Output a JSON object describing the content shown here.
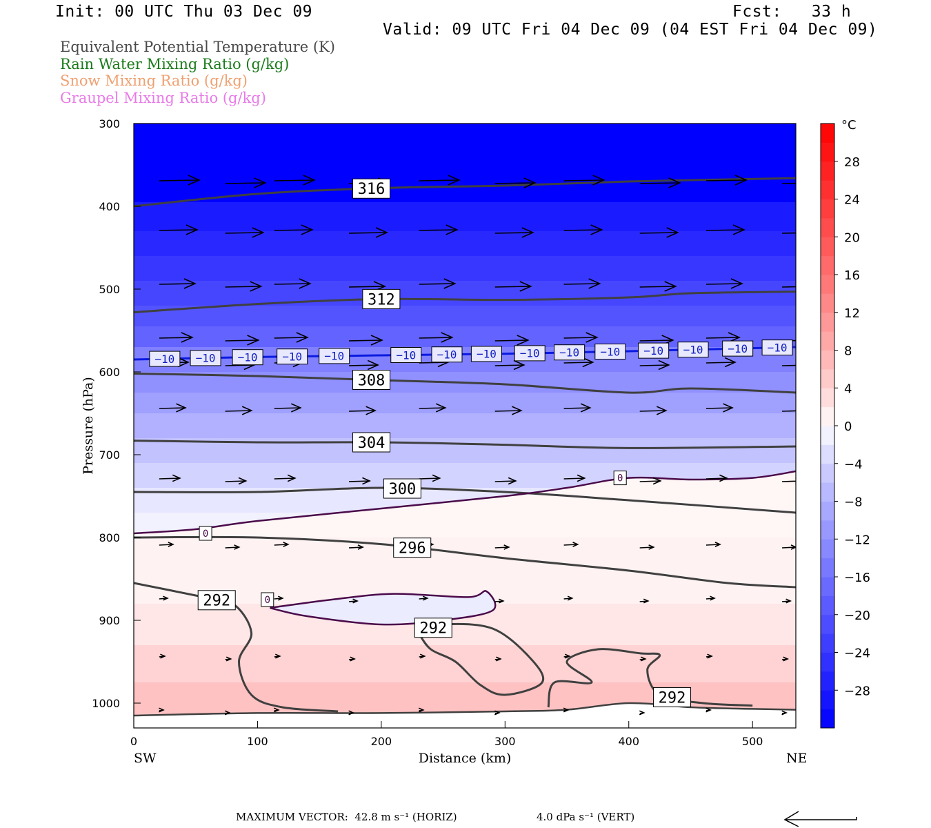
{
  "header": {
    "init": "Init: 00 UTC Thu 03 Dec 09",
    "fcst": "Fcst:   33 h",
    "valid": "Valid: 09 UTC Fri 04 Dec 09 (04 EST Fri 04 Dec 09)"
  },
  "legend": [
    {
      "label": "Equivalent Potential Temperature (K)",
      "color": "#4a4a4a"
    },
    {
      "label": "Rain Water Mixing Ratio (g/kg)",
      "color": "#1a7a1a"
    },
    {
      "label": "Snow Mixing Ratio (g/kg)",
      "color": "#f0a070"
    },
    {
      "label": "Graupel Mixing Ratio (g/kg)",
      "color": "#e87ae8"
    }
  ],
  "footer": {
    "max_horiz": "MAXIMUM VECTOR:  42.8 m s⁻¹ (HORIZ)",
    "max_vert": "4.0 dPa s⁻¹ (VERT)"
  },
  "chart_data": {
    "type": "heatmap",
    "title": "",
    "xlabel": "Distance (km)",
    "ylabel": "Pressure (hPa)",
    "xlim": [
      0,
      535
    ],
    "ylim": [
      300,
      1030
    ],
    "x_ticks": [
      0,
      100,
      200,
      300,
      400,
      500
    ],
    "y_ticks": [
      300,
      400,
      500,
      600,
      700,
      800,
      900,
      1000
    ],
    "x_end_labels": {
      "left": "SW",
      "right": "NE"
    },
    "colorbar": {
      "unit": "°C",
      "ticks": [
        28,
        24,
        20,
        16,
        12,
        8,
        4,
        0,
        -4,
        -8,
        -12,
        -16,
        -20,
        -24,
        -28
      ],
      "tick_labels": [
        "28",
        "24",
        "20",
        "16",
        "12",
        "8",
        "4",
        "0",
        "−4",
        "−8",
        "−12",
        "−16",
        "−20",
        "−24",
        "−28"
      ],
      "levels": [
        -32,
        -30,
        -28,
        -26,
        -24,
        -22,
        -20,
        -18,
        -16,
        -14,
        -12,
        -10,
        -8,
        -6,
        -4,
        -2,
        0,
        2,
        4,
        6,
        8,
        10,
        12,
        14,
        16,
        18,
        20,
        22,
        24,
        26,
        28,
        30,
        32
      ],
      "min_color": "#0000ff",
      "zero_color": "#ffffff",
      "max_color": "#ff0000"
    },
    "temperature_bands": [
      {
        "p_top": 300,
        "p_bot": 395,
        "t": -32
      },
      {
        "p_top": 395,
        "p_bot": 430,
        "t": -28
      },
      {
        "p_top": 430,
        "p_bot": 460,
        "t": -26
      },
      {
        "p_top": 460,
        "p_bot": 490,
        "t": -24
      },
      {
        "p_top": 490,
        "p_bot": 520,
        "t": -22
      },
      {
        "p_top": 520,
        "p_bot": 545,
        "t": -20
      },
      {
        "p_top": 545,
        "p_bot": 570,
        "t": -18
      },
      {
        "p_top": 570,
        "p_bot": 600,
        "t": -14
      },
      {
        "p_top": 600,
        "p_bot": 625,
        "t": -12
      },
      {
        "p_top": 625,
        "p_bot": 650,
        "t": -10
      },
      {
        "p_top": 650,
        "p_bot": 680,
        "t": -8
      },
      {
        "p_top": 680,
        "p_bot": 710,
        "t": -6
      },
      {
        "p_top": 710,
        "p_bot": 740,
        "t": -4
      },
      {
        "p_top": 740,
        "p_bot": 770,
        "t": -2
      },
      {
        "p_top": 770,
        "p_bot": 800,
        "t": -1
      },
      {
        "p_top": 800,
        "p_bot": 880,
        "t": 1
      },
      {
        "p_top": 880,
        "p_bot": 930,
        "t": 2
      },
      {
        "p_top": 930,
        "p_bot": 975,
        "t": 4
      },
      {
        "p_top": 975,
        "p_bot": 1030,
        "t": 6
      }
    ],
    "warm_zone_top": [
      [
        0,
        795
      ],
      [
        50,
        790
      ],
      [
        100,
        780
      ],
      [
        200,
        765
      ],
      [
        300,
        750
      ],
      [
        350,
        740
      ],
      [
        400,
        728
      ],
      [
        450,
        730
      ],
      [
        500,
        728
      ],
      [
        535,
        720
      ]
    ],
    "cold_pocket": [
      [
        110,
        885
      ],
      [
        160,
        875
      ],
      [
        210,
        868
      ],
      [
        270,
        872
      ],
      [
        285,
        865
      ],
      [
        290,
        888
      ],
      [
        250,
        900
      ],
      [
        200,
        905
      ],
      [
        140,
        895
      ],
      [
        110,
        885
      ]
    ],
    "theta_e_contours": [
      {
        "value": 316,
        "label": "316",
        "label_x": 192,
        "points": [
          [
            0,
            400
          ],
          [
            100,
            385
          ],
          [
            200,
            378
          ],
          [
            300,
            375
          ],
          [
            400,
            370
          ],
          [
            535,
            366
          ]
        ]
      },
      {
        "value": 312,
        "label": "312",
        "label_x": 200,
        "points": [
          [
            0,
            528
          ],
          [
            100,
            518
          ],
          [
            200,
            512
          ],
          [
            300,
            513
          ],
          [
            400,
            510
          ],
          [
            450,
            505
          ],
          [
            535,
            503
          ]
        ]
      },
      {
        "value": 308,
        "label": "308",
        "label_x": 192,
        "points": [
          [
            0,
            602
          ],
          [
            100,
            605
          ],
          [
            200,
            610
          ],
          [
            300,
            615
          ],
          [
            400,
            625
          ],
          [
            450,
            620
          ],
          [
            535,
            625
          ]
        ]
      },
      {
        "value": 304,
        "label": "304",
        "label_x": 192,
        "points": [
          [
            0,
            683
          ],
          [
            100,
            685
          ],
          [
            200,
            685
          ],
          [
            300,
            688
          ],
          [
            400,
            692
          ],
          [
            535,
            690
          ]
        ]
      },
      {
        "value": 300,
        "label": "300",
        "label_x": 217,
        "points": [
          [
            0,
            745
          ],
          [
            100,
            745
          ],
          [
            200,
            740
          ],
          [
            300,
            745
          ],
          [
            400,
            755
          ],
          [
            535,
            770
          ]
        ]
      },
      {
        "value": 296,
        "label": "296",
        "label_x": 225,
        "points": [
          [
            0,
            800
          ],
          [
            100,
            800
          ],
          [
            200,
            808
          ],
          [
            300,
            825
          ],
          [
            400,
            840
          ],
          [
            480,
            855
          ],
          [
            535,
            860
          ]
        ]
      },
      {
        "value": 292,
        "label": "292",
        "label_x": 67,
        "points": [
          [
            0,
            855
          ],
          [
            50,
            870
          ],
          [
            80,
            880
          ],
          [
            95,
            915
          ],
          [
            85,
            950
          ],
          [
            95,
            990
          ],
          [
            120,
            1005
          ],
          [
            165,
            1010
          ]
        ]
      },
      {
        "value": 292,
        "label": "292",
        "label_x": 242,
        "points": [
          [
            230,
            915
          ],
          [
            250,
            905
          ],
          [
            290,
            910
          ],
          [
            320,
            945
          ],
          [
            330,
            975
          ],
          [
            300,
            990
          ],
          [
            280,
            978
          ],
          [
            260,
            950
          ],
          [
            240,
            935
          ],
          [
            230,
            915
          ]
        ]
      },
      {
        "value": 292,
        "label": "292",
        "label_x": 435,
        "points": [
          [
            335,
            1005
          ],
          [
            340,
            975
          ],
          [
            370,
            975
          ],
          [
            350,
            950
          ],
          [
            375,
            935
          ],
          [
            410,
            940
          ],
          [
            425,
            942
          ],
          [
            415,
            960
          ],
          [
            425,
            990
          ],
          [
            460,
            1000
          ],
          [
            500,
            1003
          ]
        ]
      }
    ],
    "theta_e_base": [
      [
        0,
        1015
      ],
      [
        100,
        1012
      ],
      [
        200,
        1012
      ],
      [
        300,
        1010
      ],
      [
        350,
        1008
      ],
      [
        400,
        1000
      ],
      [
        450,
        1005
      ],
      [
        500,
        1007
      ],
      [
        535,
        1008
      ]
    ],
    "minus10_line": {
      "label": "−10",
      "points": [
        [
          0,
          585
        ],
        [
          100,
          582
        ],
        [
          200,
          580
        ],
        [
          300,
          578
        ],
        [
          400,
          575
        ],
        [
          535,
          570
        ]
      ],
      "label_xs": [
        25,
        58,
        92,
        128,
        162,
        220,
        253,
        285,
        320,
        352,
        385,
        420,
        452,
        488,
        520
      ]
    },
    "zero_isotherm_labels": [
      {
        "label": "0",
        "x": 58,
        "p": 795
      },
      {
        "label": "0",
        "x": 108,
        "p": 875
      },
      {
        "label": "0",
        "x": 393,
        "p": 728
      }
    ],
    "wind_vectors": [
      {
        "p": 370,
        "len": 58
      },
      {
        "p": 430,
        "len": 55
      },
      {
        "p": 495,
        "len": 52
      },
      {
        "p": 560,
        "len": 48
      },
      {
        "p": 590,
        "len": 42
      },
      {
        "p": 645,
        "len": 38
      },
      {
        "p": 730,
        "len": 30
      },
      {
        "p": 810,
        "len": 20
      },
      {
        "p": 875,
        "len": 12
      },
      {
        "p": 945,
        "len": 8
      },
      {
        "p": 1010,
        "len": 6
      }
    ],
    "wind_x": [
      25,
      75,
      118,
      175,
      235,
      293,
      352,
      410,
      467,
      525
    ],
    "ref_vector_len": 100
  }
}
